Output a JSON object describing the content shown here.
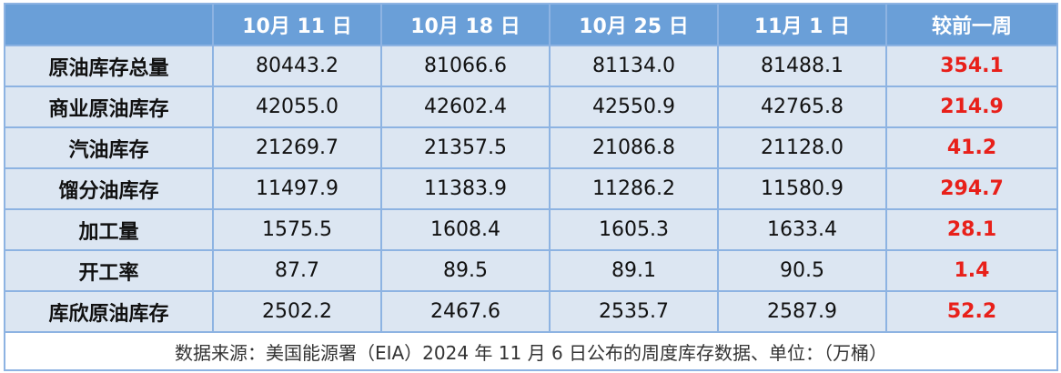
{
  "table": {
    "header": [
      "10月 11 日",
      "10月 18 日",
      "10月 25 日",
      "11月 1 日",
      "较前一周"
    ],
    "rows": [
      [
        "原油库存总量",
        "80443.2",
        "81066.6",
        "81134.0",
        "81488.1",
        "354.1"
      ],
      [
        "商业原油库存",
        "42055.0",
        "42602.4",
        "42550.9",
        "42765.8",
        "214.9"
      ],
      [
        "汽油库存",
        "21269.7",
        "21357.5",
        "21086.8",
        "21128.0",
        "41.2"
      ],
      [
        "馏分油库存",
        "11497.9",
        "11383.9",
        "11286.2",
        "11580.9",
        "294.7"
      ],
      [
        "加工量",
        "1575.5",
        "1608.4",
        "1605.3",
        "1633.4",
        "28.1"
      ],
      [
        "开工率",
        "87.7",
        "89.5",
        "89.1",
        "90.5",
        "1.4"
      ],
      [
        "库欣原油库存",
        "2502.2",
        "2467.6",
        "2535.7",
        "2587.9",
        "52.2"
      ]
    ],
    "footnote": "数据来源：美国能源署（EIA）2024 年 11 月 6 日公布的周度库存数据、单位：（万桶）"
  }
}
